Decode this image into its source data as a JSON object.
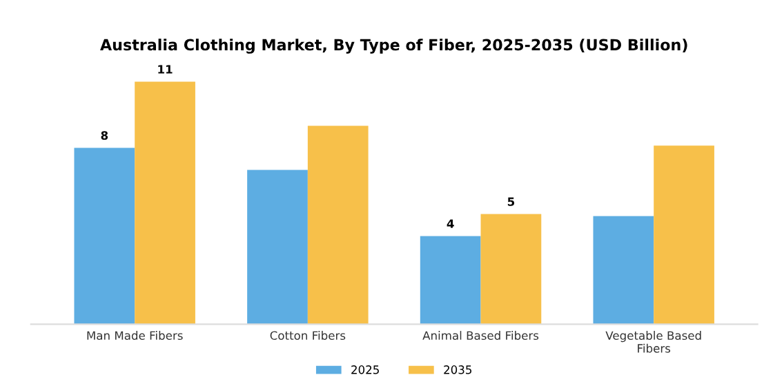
{
  "chart_data": {
    "type": "bar",
    "title": "Australia Clothing Market, By Type of Fiber, 2025-2035 (USD Billion)",
    "categories": [
      "Man Made Fibers",
      "Cotton Fibers",
      "Animal Based Fibers",
      "Vegetable Based\nFibers"
    ],
    "series": [
      {
        "name": "2025",
        "color": "#5dade2",
        "values": [
          8,
          7.0,
          4,
          4.9
        ],
        "value_labels": [
          "8",
          null,
          "4",
          null
        ]
      },
      {
        "name": "2035",
        "color": "#f7c04a",
        "values": [
          11,
          9.0,
          5,
          8.1
        ],
        "value_labels": [
          "11",
          null,
          "5",
          null
        ]
      }
    ],
    "grid": false,
    "legend": "bottom"
  }
}
